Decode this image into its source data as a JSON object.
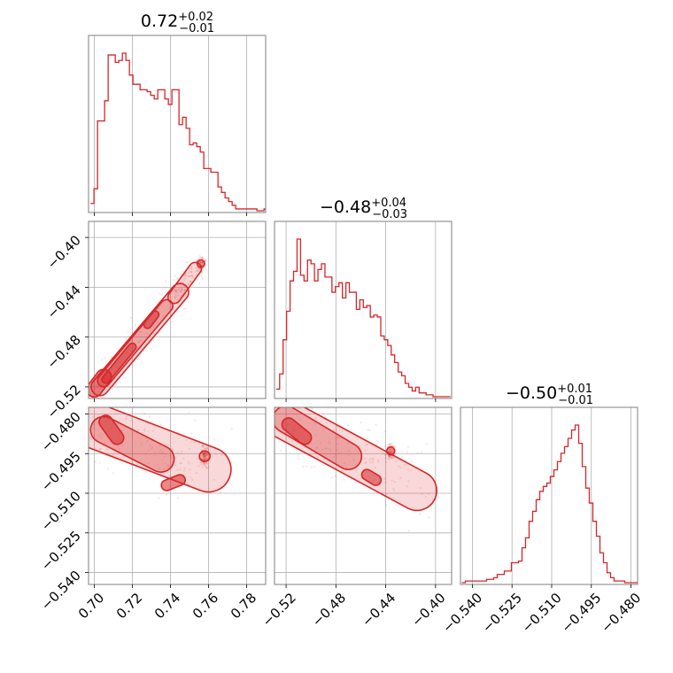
{
  "chart_data": {
    "type": "corner",
    "color": "#d62728",
    "parameters": [
      {
        "title_value": "0.72",
        "title_plus": "+0.02",
        "title_minus": "−0.01",
        "range": [
          0.697,
          0.79
        ],
        "ticks": [
          0.7,
          0.72,
          0.74,
          0.76,
          0.78
        ],
        "tick_labels": [
          "0.70",
          "0.72",
          "0.74",
          "0.76",
          "0.78"
        ],
        "hist_start": 0.698,
        "hist_step": 0.00186,
        "hist_counts": [
          4,
          12,
          49,
          49,
          60,
          85,
          85,
          81,
          82,
          86,
          82,
          74,
          69,
          69,
          66,
          66,
          65,
          63,
          61,
          66,
          66,
          61,
          58,
          66,
          66,
          47,
          51,
          45,
          36,
          37,
          35,
          32,
          23,
          23,
          21,
          21,
          13,
          10,
          7,
          5,
          3,
          1,
          1,
          1,
          1,
          1,
          1,
          0,
          0,
          1
        ]
      },
      {
        "title_value": "−0.48",
        "title_plus": "+0.04",
        "title_minus": "−0.03",
        "range": [
          -0.5293,
          -0.3871
        ],
        "ticks": [
          -0.52,
          -0.48,
          -0.44,
          -0.4
        ],
        "tick_labels": [
          "−0.52",
          "−0.48",
          "−0.44",
          "−0.40"
        ],
        "hist_start": -0.528,
        "hist_step": 0.0028,
        "hist_counts": [
          4,
          12,
          30,
          45,
          61,
          66,
          83,
          64,
          61,
          72,
          70,
          61,
          67,
          70,
          63,
          63,
          55,
          58,
          60,
          52,
          60,
          55,
          55,
          46,
          51,
          47,
          48,
          42,
          43,
          42,
          32,
          30,
          27,
          22,
          18,
          13,
          11,
          7,
          5,
          3,
          5,
          2,
          2,
          1,
          1,
          0,
          0,
          0,
          0,
          0
        ]
      },
      {
        "title_value": "−0.50",
        "title_plus": "+0.01",
        "title_minus": "−0.01",
        "range": [
          -0.5445,
          -0.4775
        ],
        "ticks": [
          -0.54,
          -0.525,
          -0.51,
          -0.495,
          -0.48
        ],
        "tick_labels": [
          "−0.540",
          "−0.525",
          "−0.510",
          "−0.495",
          "−0.480"
        ],
        "hist_start": -0.544,
        "hist_step": 0.00134,
        "hist_counts": [
          0,
          1,
          1,
          1,
          1,
          1,
          1,
          2,
          2,
          3,
          5,
          5,
          7,
          7,
          12,
          12,
          13,
          21,
          27,
          37,
          43,
          50,
          55,
          58,
          60,
          64,
          68,
          73,
          78,
          82,
          87,
          92,
          95,
          84,
          70,
          57,
          48,
          37,
          28,
          18,
          12,
          6,
          3,
          1,
          1,
          1,
          0,
          0,
          0,
          0
        ]
      }
    ],
    "pairs": [
      {
        "x": 0,
        "y": 1,
        "scatter_seed": 11,
        "blobs": [
          {
            "x0": 0.7,
            "y0": -0.522,
            "x1": 0.705,
            "y1": -0.512,
            "rx": 0.004,
            "ry": 0.006,
            "level": 3
          },
          {
            "x0": 0.703,
            "y0": -0.52,
            "x1": 0.745,
            "y1": -0.444,
            "rx": 0.0045,
            "ry": 0.007,
            "level": 1
          },
          {
            "x0": 0.705,
            "y0": -0.515,
            "x1": 0.738,
            "y1": -0.455,
            "rx": 0.003,
            "ry": 0.005,
            "level": 2
          },
          {
            "x0": 0.706,
            "y0": -0.514,
            "x1": 0.72,
            "y1": -0.488,
            "rx": 0.002,
            "ry": 0.003,
            "level": 3
          },
          {
            "x0": 0.728,
            "y0": -0.47,
            "x1": 0.732,
            "y1": -0.462,
            "rx": 0.0015,
            "ry": 0.003,
            "level": 3
          },
          {
            "x0": 0.742,
            "y0": -0.448,
            "x1": 0.753,
            "y1": -0.425,
            "rx": 0.003,
            "ry": 0.005,
            "level": 1
          },
          {
            "x0": 0.756,
            "y0": -0.421,
            "x1": 0.756,
            "y1": -0.421,
            "rx": 0.0012,
            "ry": 0.003,
            "level": 1
          }
        ]
      },
      {
        "x": 0,
        "y": 2,
        "scatter_seed": 23,
        "blobs": [
          {
            "x0": 0.702,
            "y0": -0.485,
            "x1": 0.76,
            "y1": -0.501,
            "rx": 0.006,
            "ry": 0.0085,
            "level": 1
          },
          {
            "x0": 0.705,
            "y0": -0.486,
            "x1": 0.735,
            "y1": -0.497,
            "rx": 0.004,
            "ry": 0.005,
            "level": 2
          },
          {
            "x0": 0.706,
            "y0": -0.483,
            "x1": 0.712,
            "y1": -0.489,
            "rx": 0.002,
            "ry": 0.0025,
            "level": 3
          },
          {
            "x0": 0.738,
            "y0": -0.507,
            "x1": 0.745,
            "y1": -0.505,
            "rx": 0.002,
            "ry": 0.002,
            "level": 3
          },
          {
            "x0": 0.758,
            "y0": -0.496,
            "x1": 0.758,
            "y1": -0.496,
            "rx": 0.0012,
            "ry": 0.002,
            "level": 1
          }
        ]
      },
      {
        "x": 1,
        "y": 2,
        "scatter_seed": 37,
        "blobs": [
          {
            "x0": -0.525,
            "y0": -0.481,
            "x1": -0.415,
            "y1": -0.509,
            "rx": 0.012,
            "ry": 0.0075,
            "level": 1
          },
          {
            "x0": -0.52,
            "y0": -0.482,
            "x1": -0.47,
            "y1": -0.496,
            "rx": 0.008,
            "ry": 0.005,
            "level": 2
          },
          {
            "x0": -0.518,
            "y0": -0.484,
            "x1": -0.505,
            "y1": -0.489,
            "rx": 0.005,
            "ry": 0.0025,
            "level": 3
          },
          {
            "x0": -0.455,
            "y0": -0.503,
            "x1": -0.448,
            "y1": -0.505,
            "rx": 0.003,
            "ry": 0.002,
            "level": 3
          },
          {
            "x0": -0.436,
            "y0": -0.494,
            "x1": -0.436,
            "y1": -0.494,
            "rx": 0.002,
            "ry": 0.0015,
            "level": 1
          }
        ]
      }
    ]
  }
}
